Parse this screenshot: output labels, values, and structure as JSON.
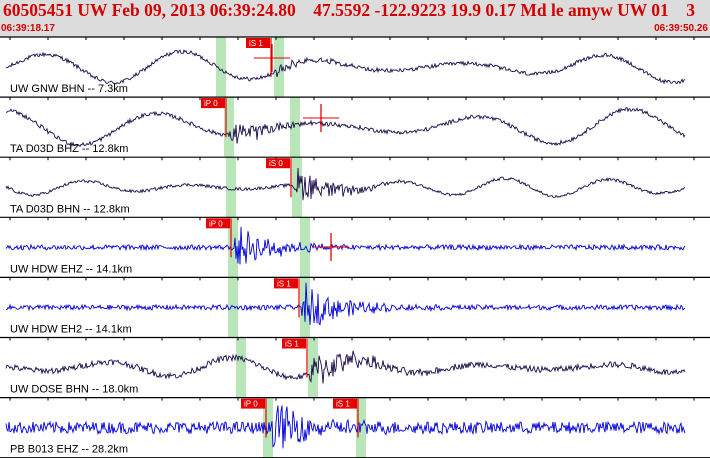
{
  "header": {
    "title": "60505451 UW Feb 09, 2013 06:39:24.80    47.5592 -122.9223 19.9 0.17 Md le amyw UW 01    3",
    "start_time": "06:39:18.17",
    "end_time": "06:39:50.26"
  },
  "colors": {
    "header_bg": "#dcdcdc",
    "header_text": "#d40000",
    "trace_dark": "#1a0a4a",
    "trace_blue": "#0000dd",
    "pick_bg": "#e60000",
    "window_green": "#b8e6b8",
    "separator": "#000000"
  },
  "channels": [
    {
      "label": "UW GNW BHN -- 7.3km",
      "color_key": "trace_dark",
      "picks": [
        {
          "text": "iS 1"
        }
      ]
    },
    {
      "label": "TA D03D BHZ -- 12.8km",
      "color_key": "trace_dark",
      "picks": [
        {
          "text": "iP 0"
        }
      ]
    },
    {
      "label": "TA D03D BHN -- 12.8km",
      "color_key": "trace_dark",
      "picks": [
        {
          "text": "iS 0"
        }
      ]
    },
    {
      "label": "UW HDW EHZ -- 14.1km",
      "color_key": "trace_blue",
      "picks": [
        {
          "text": "iP 0"
        }
      ]
    },
    {
      "label": "UW HDW EH2 -- 14.1km",
      "color_key": "trace_blue",
      "picks": [
        {
          "text": "iS 1"
        }
      ]
    },
    {
      "label": "UW DOSE BHN -- 18.0km",
      "color_key": "trace_dark",
      "picks": [
        {
          "text": "iS 1"
        }
      ]
    },
    {
      "label": "PB B013 EHZ -- 28.2km",
      "color_key": "trace_blue",
      "picks": [
        {
          "text": "iP 0"
        },
        {
          "text": "iS 1"
        }
      ]
    }
  ]
}
